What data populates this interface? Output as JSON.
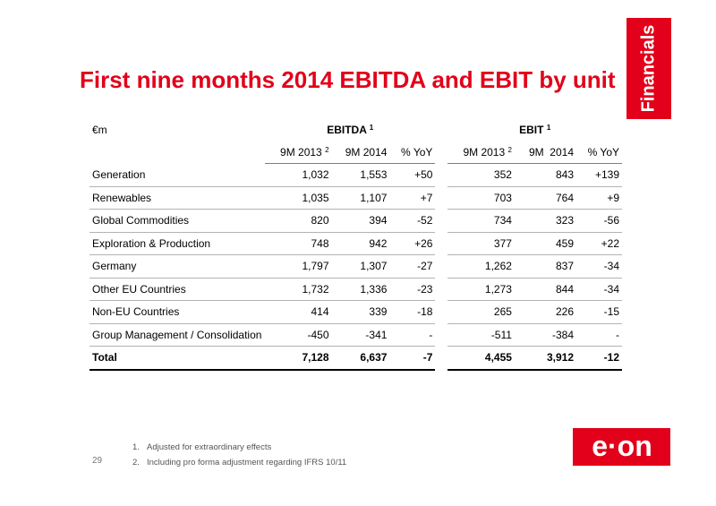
{
  "section_tab": "Financials",
  "title": "First nine months 2014 EBITDA and EBIT by unit",
  "unit_label": "€m",
  "groups": {
    "ebitda": {
      "label": "EBITDA",
      "note": "1"
    },
    "ebit": {
      "label": "EBIT",
      "note": "1"
    }
  },
  "columns": {
    "ebitda": [
      {
        "label": "9M 2013",
        "note": "2"
      },
      {
        "label": "9M 2014",
        "note": ""
      },
      {
        "label": "% YoY",
        "note": ""
      }
    ],
    "ebit": [
      {
        "label": "9M 2013",
        "note": "2"
      },
      {
        "label": "9M  2014",
        "note": ""
      },
      {
        "label": "% YoY",
        "note": ""
      }
    ]
  },
  "rows": [
    {
      "label": "Generation",
      "ebitda": [
        "1,032",
        "1,553",
        "+50"
      ],
      "ebit": [
        "352",
        "843",
        "+139"
      ]
    },
    {
      "label": "Renewables",
      "ebitda": [
        "1,035",
        "1,107",
        "+7"
      ],
      "ebit": [
        "703",
        "764",
        "+9"
      ]
    },
    {
      "label": "Global Commodities",
      "ebitda": [
        "820",
        "394",
        "-52"
      ],
      "ebit": [
        "734",
        "323",
        "-56"
      ]
    },
    {
      "label": "Exploration & Production",
      "ebitda": [
        "748",
        "942",
        "+26"
      ],
      "ebit": [
        "377",
        "459",
        "+22"
      ]
    },
    {
      "label": "Germany",
      "ebitda": [
        "1,797",
        "1,307",
        "-27"
      ],
      "ebit": [
        "1,262",
        "837",
        "-34"
      ]
    },
    {
      "label": "Other EU Countries",
      "ebitda": [
        "1,732",
        "1,336",
        "-23"
      ],
      "ebit": [
        "1,273",
        "844",
        "-34"
      ]
    },
    {
      "label": "Non-EU Countries",
      "ebitda": [
        "414",
        "339",
        "-18"
      ],
      "ebit": [
        "265",
        "226",
        "-15"
      ]
    },
    {
      "label": "Group Management / Consolidation",
      "ebitda": [
        "-450",
        "-341",
        "-"
      ],
      "ebit": [
        "-511",
        "-384",
        "-"
      ]
    }
  ],
  "total": {
    "label": "Total",
    "ebitda": [
      "7,128",
      "6,637",
      "-7"
    ],
    "ebit": [
      "4,455",
      "3,912",
      "-12"
    ]
  },
  "footnotes": [
    {
      "num": "1.",
      "text": "Adjusted for extraordinary effects"
    },
    {
      "num": "2.",
      "text": "Including pro forma adjustment regarding IFRS 10/11"
    }
  ],
  "page_number": "29",
  "logo_text": "e·on",
  "colors": {
    "brand_red": "#e2001a"
  }
}
